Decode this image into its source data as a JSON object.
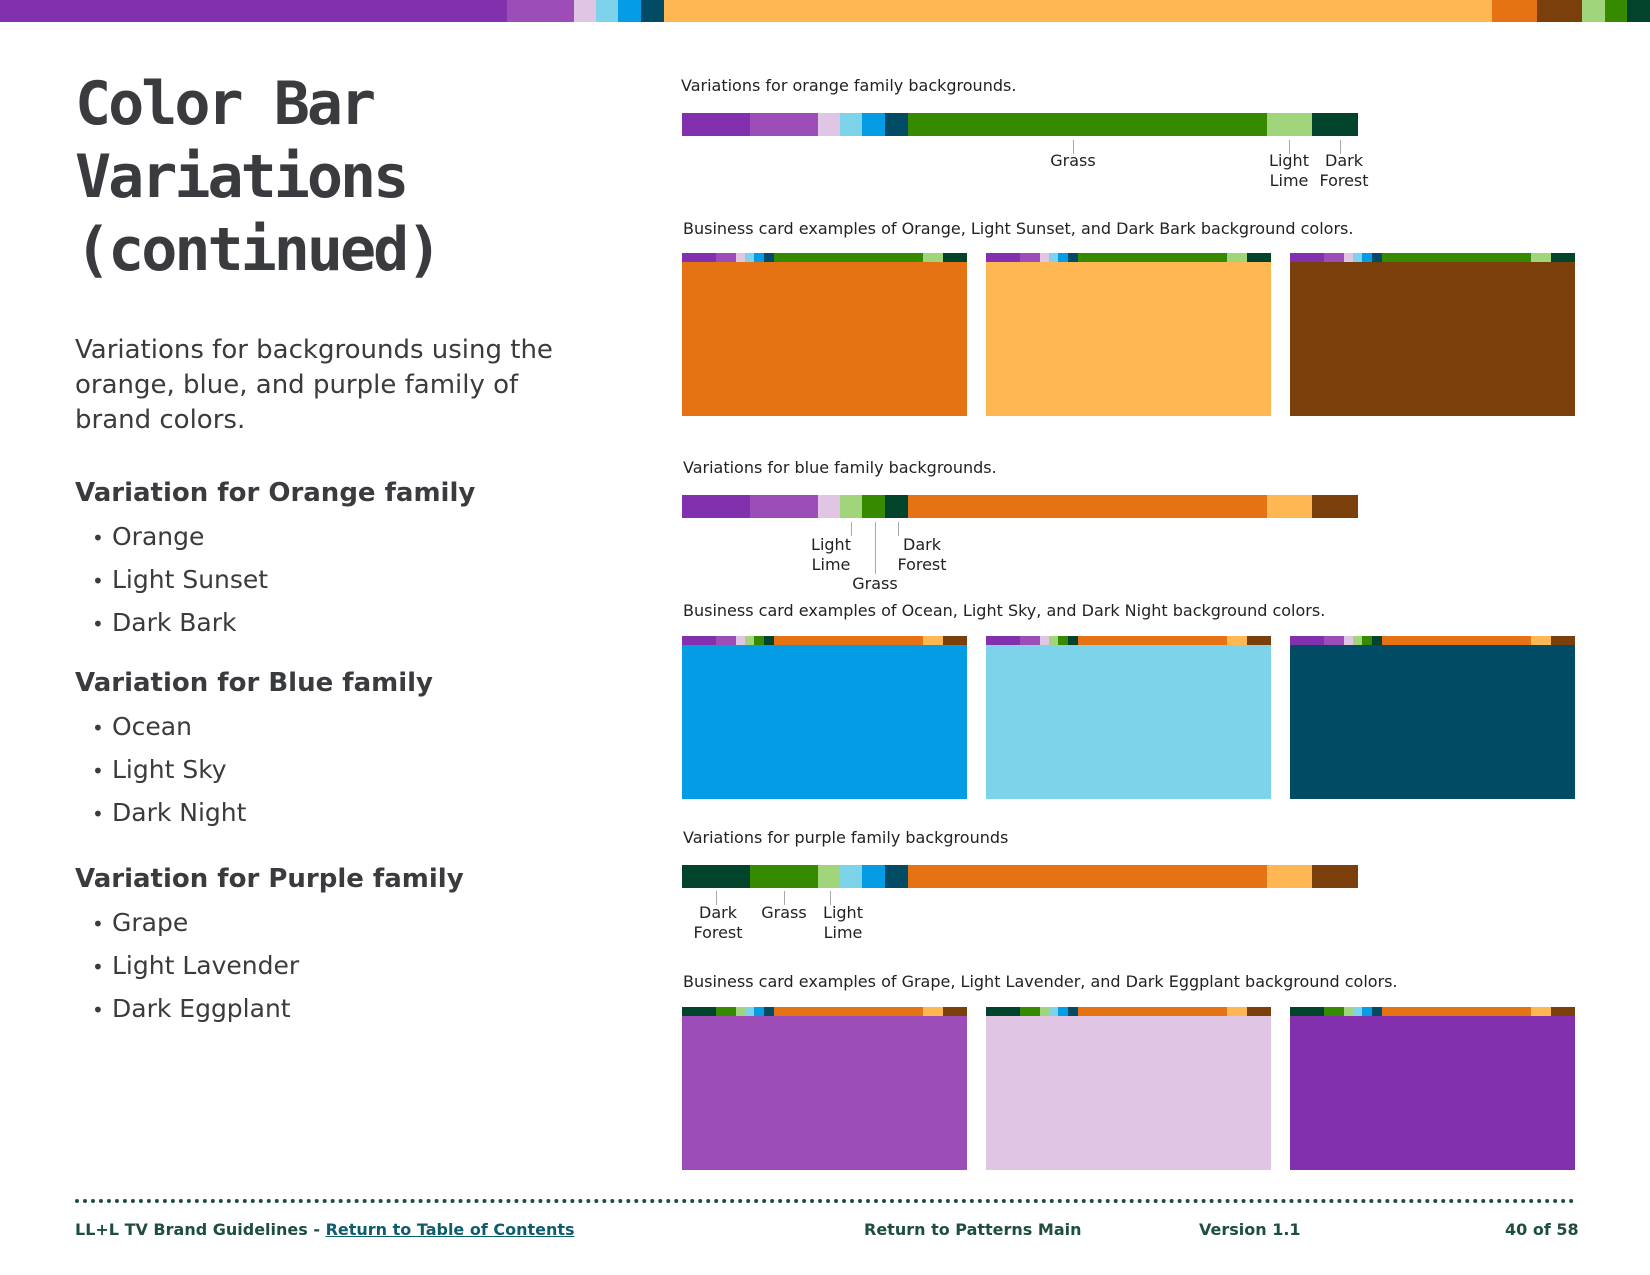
{
  "colors": {
    "grape": "#8230ae",
    "lavender_mid": "#9d4db7",
    "light_lavender": "#e0c5e5",
    "light_sky": "#7dd3ea",
    "ocean": "#039ce5",
    "dark_night": "#014b64",
    "orange": "#e57314",
    "light_sunset": "#ffb753",
    "dark_bark": "#7b3f0c",
    "grass": "#358a00",
    "light_lime": "#a1d57b",
    "dark_forest": "#02432b"
  },
  "page": {
    "title": "Color Bar Variations (continued)",
    "intro": "Variations for backgrounds using the orange, blue, and purple family of brand colors."
  },
  "families": [
    {
      "heading": "Variation for Orange family",
      "items": [
        "Orange",
        "Light Sunset",
        "Dark Bark"
      ]
    },
    {
      "heading": "Variation for Blue family",
      "items": [
        "Ocean",
        "Light Sky",
        "Dark Night"
      ]
    },
    {
      "heading": "Variation for Purple family",
      "items": [
        "Grape",
        "Light Lavender",
        "Dark Eggplant"
      ]
    }
  ],
  "sections": {
    "orange": {
      "bar_caption": "Variations for orange family backgrounds.",
      "labels": {
        "grass": "Grass",
        "light_lime": "Light\nLime",
        "dark_forest": "Dark\nForest"
      },
      "cards_caption": "Business card examples of Orange, Light Sunset, and Dark Bark background colors."
    },
    "blue": {
      "bar_caption": "Variations for blue family backgrounds.",
      "labels": {
        "light_lime": "Light\nLime",
        "grass": "Grass",
        "dark_forest": "Dark\nForest"
      },
      "cards_caption": "Business card examples of Ocean, Light Sky, and Dark Night background colors."
    },
    "purple": {
      "bar_caption": "Variations for purple family backgrounds",
      "labels": {
        "dark_forest": "Dark\nForest",
        "grass": "Grass",
        "light_lime": "Light\nLime"
      },
      "cards_caption": "Business card examples of Grape, Light Lavender, and Dark Eggplant background colors."
    }
  },
  "footer": {
    "brand": "LL+L TV Brand Guidelines - ",
    "toc_link": "Return to Table of Contents",
    "patterns_link": "Return to Patterns Main",
    "version": "Version 1.1",
    "page_num": "40 of 58"
  }
}
